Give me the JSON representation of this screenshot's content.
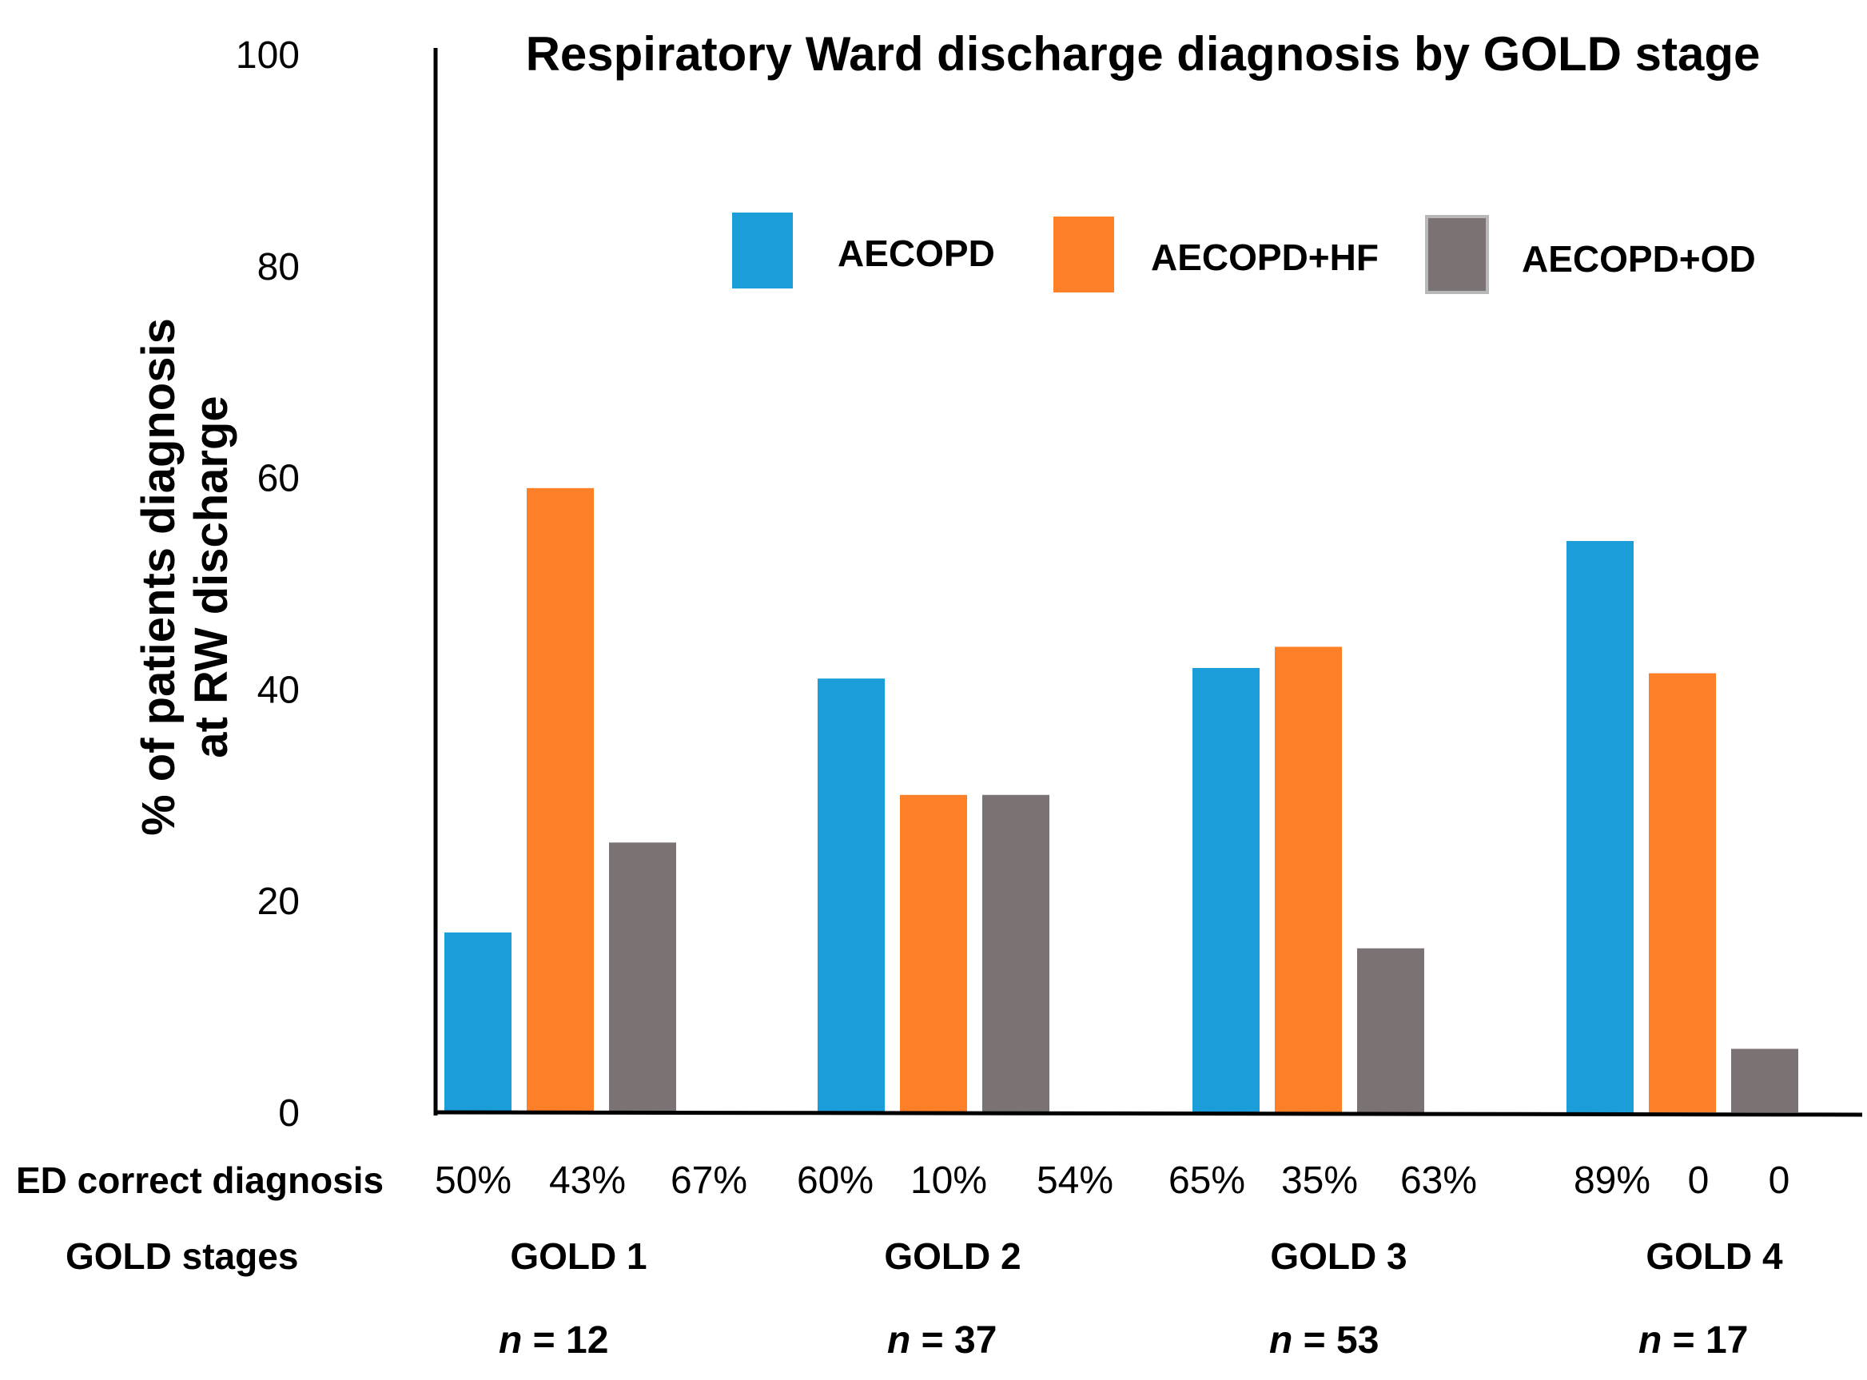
{
  "chart_data": {
    "type": "bar",
    "title": "Respiratory Ward discharge diagnosis by GOLD stage",
    "ylabel_lines": [
      "% of patients diagnosis",
      "at RW discharge"
    ],
    "ylim": [
      0,
      100
    ],
    "yticks": [
      0,
      20,
      40,
      60,
      80,
      100
    ],
    "categories": [
      "GOLD 1",
      "GOLD 2",
      "GOLD 3",
      "GOLD 4"
    ],
    "series": [
      {
        "name": "AECOPD",
        "color": "#1b9dd9",
        "values": [
          17,
          41,
          42,
          54
        ]
      },
      {
        "name": "AECOPD+HF",
        "color": "#fd7f28",
        "values": [
          59,
          30,
          44,
          41.5
        ]
      },
      {
        "name": "AECOPD+OD",
        "color": "#7a7273",
        "values": [
          25.5,
          30,
          15.5,
          6
        ]
      }
    ],
    "ed_row": {
      "label": "ED correct diagnosis",
      "values": [
        [
          "50%",
          "43%",
          "67%"
        ],
        [
          "60%",
          "10%",
          "54%"
        ],
        [
          "65%",
          "35%",
          "63%"
        ],
        [
          "89%",
          "0",
          "0"
        ]
      ]
    },
    "gold_row_label": "GOLD stages",
    "n_values": [
      {
        "n": "n",
        "rest": " = 12"
      },
      {
        "n": "n",
        "rest": " = 37"
      },
      {
        "n": "n",
        "rest": " = 53"
      },
      {
        "n": "n",
        "rest": " =  17"
      }
    ]
  }
}
